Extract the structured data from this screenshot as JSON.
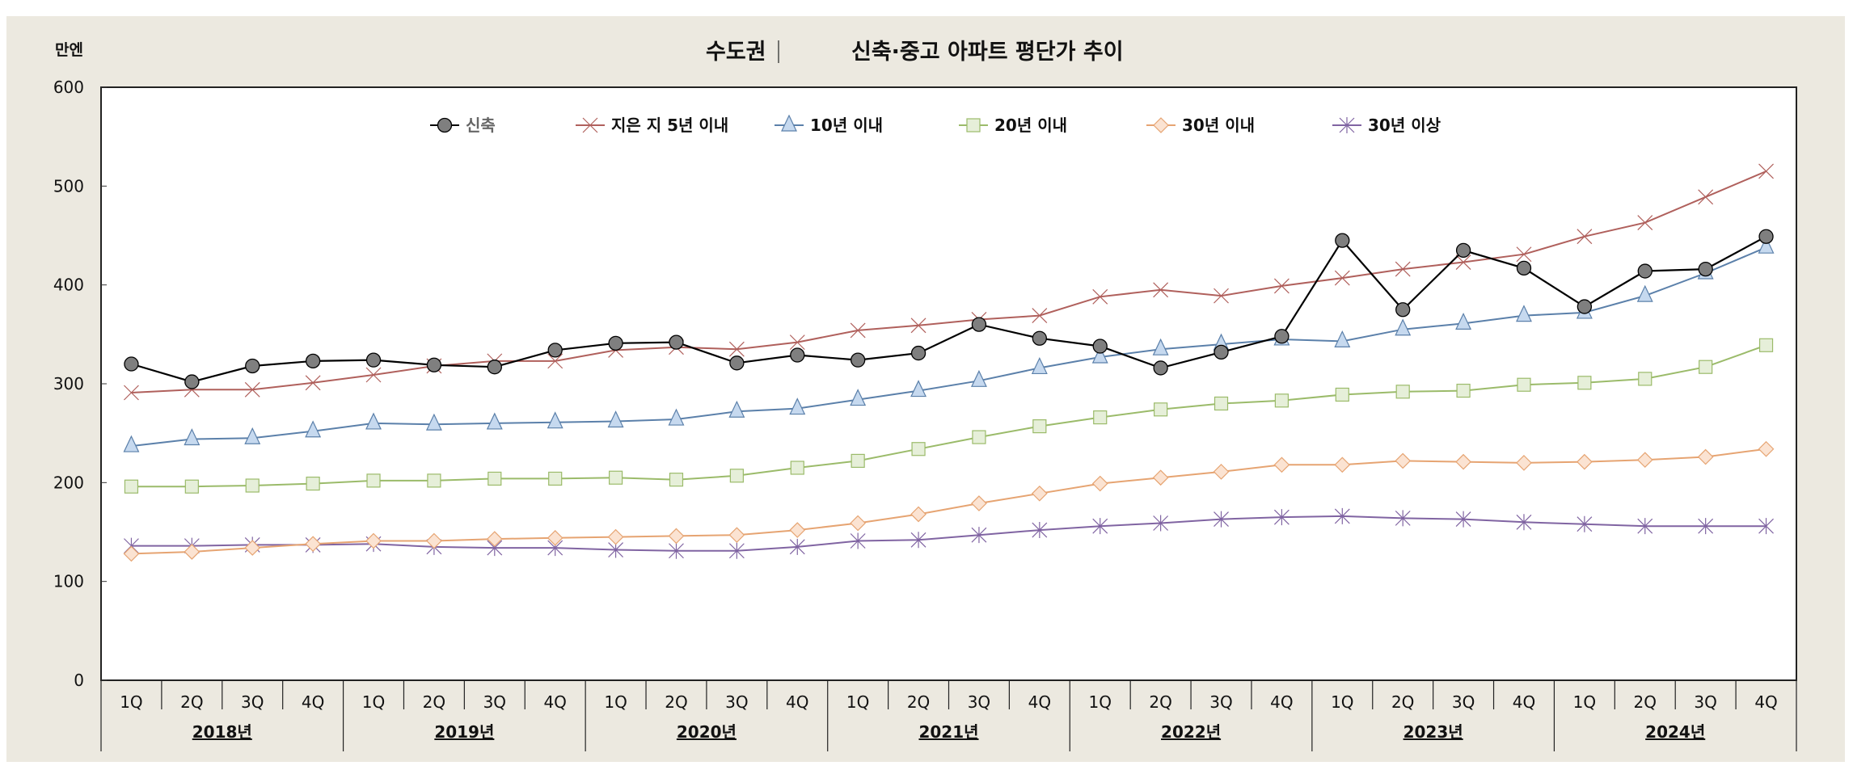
{
  "chart_data": {
    "type": "line",
    "title_region": "수도권",
    "title": "신축·중고 아파트 평단가 추이",
    "ylabel": "만엔",
    "xlabel": "",
    "ylim": [
      0,
      600
    ],
    "yticks": [
      0,
      100,
      200,
      300,
      400,
      500,
      600
    ],
    "grid": false,
    "legend_position": "top",
    "quarters": [
      "1Q",
      "2Q",
      "3Q",
      "4Q"
    ],
    "years": [
      "2018년",
      "2019년",
      "2020년",
      "2021년",
      "2022년",
      "2023년",
      "2024년"
    ],
    "categories": [
      "2018 1Q",
      "2018 2Q",
      "2018 3Q",
      "2018 4Q",
      "2019 1Q",
      "2019 2Q",
      "2019 3Q",
      "2019 4Q",
      "2020 1Q",
      "2020 2Q",
      "2020 3Q",
      "2020 4Q",
      "2021 1Q",
      "2021 2Q",
      "2021 3Q",
      "2021 4Q",
      "2022 1Q",
      "2022 2Q",
      "2022 3Q",
      "2022 4Q",
      "2023 1Q",
      "2023 2Q",
      "2023 3Q",
      "2023 4Q",
      "2024 1Q",
      "2024 2Q",
      "2024 3Q",
      "2024 4Q"
    ],
    "series": [
      {
        "name": "신축",
        "color": "#000000",
        "marker": "circle",
        "marker_fill": "#7f7f7f",
        "values": [
          320,
          302,
          318,
          323,
          324,
          319,
          317,
          334,
          341,
          342,
          321,
          329,
          324,
          331,
          360,
          346,
          338,
          316,
          332,
          348,
          445,
          375,
          435,
          417,
          378,
          414,
          416,
          449
        ]
      },
      {
        "name": "지은 지 5년 이내",
        "color": "#b0605c",
        "marker": "x",
        "marker_fill": "none",
        "values": [
          291,
          294,
          294,
          301,
          309,
          318,
          323,
          323,
          334,
          337,
          335,
          342,
          354,
          359,
          365,
          369,
          388,
          395,
          389,
          399,
          407,
          416,
          423,
          431,
          449,
          463,
          489,
          515
        ]
      },
      {
        "name": "10년 이내",
        "color": "#5b80aa",
        "marker": "triangle",
        "marker_fill": "#c6d9ef",
        "values": [
          237,
          244,
          245,
          252,
          260,
          259,
          260,
          261,
          262,
          264,
          272,
          275,
          284,
          293,
          303,
          316,
          327,
          335,
          340,
          345,
          343,
          355,
          361,
          369,
          372,
          389,
          412,
          438
        ]
      },
      {
        "name": "20년 이내",
        "color": "#9bbb6a",
        "marker": "square",
        "marker_fill": "#e6efd9",
        "values": [
          196,
          196,
          197,
          199,
          202,
          202,
          204,
          204,
          205,
          203,
          207,
          215,
          222,
          234,
          246,
          257,
          266,
          274,
          280,
          283,
          289,
          292,
          293,
          299,
          301,
          305,
          317,
          339
        ]
      },
      {
        "name": "30년 이내",
        "color": "#e6a472",
        "marker": "diamond",
        "marker_fill": "#fbe3d2",
        "values": [
          128,
          130,
          134,
          138,
          141,
          141,
          143,
          144,
          145,
          146,
          147,
          152,
          159,
          168,
          179,
          189,
          199,
          205,
          211,
          218,
          218,
          222,
          221,
          220,
          221,
          223,
          226,
          234
        ]
      },
      {
        "name": "30년 이상",
        "color": "#8064a2",
        "marker": "star",
        "marker_fill": "none",
        "values": [
          136,
          136,
          137,
          137,
          138,
          135,
          134,
          134,
          132,
          131,
          131,
          135,
          141,
          142,
          147,
          152,
          156,
          159,
          163,
          165,
          166,
          164,
          163,
          160,
          158,
          156,
          156,
          156
        ]
      }
    ]
  }
}
